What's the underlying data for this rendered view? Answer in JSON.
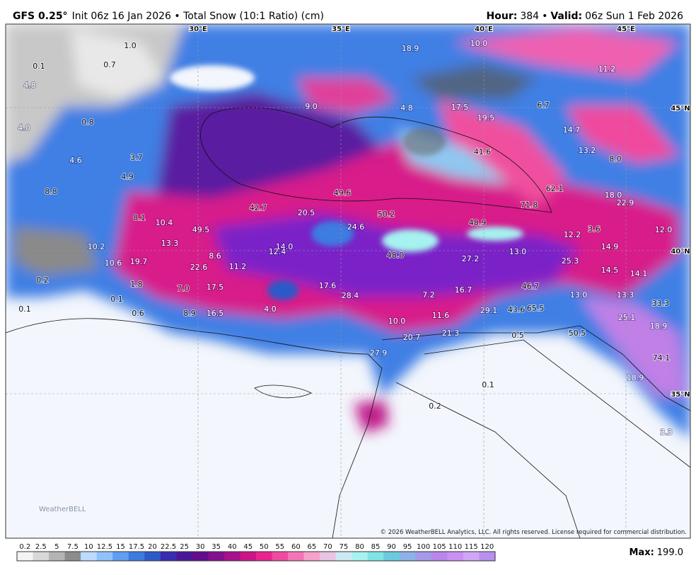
{
  "header": {
    "model": "GFS 0.25°",
    "description": "Init 06z 16 Jan 2026 • Total Snow (10:1 Ratio) (cm)",
    "hour_label": "Hour:",
    "hour": "384",
    "valid_label": "Valid:",
    "valid": "06z Sun 1 Feb 2026"
  },
  "grid_labels": [
    "30°E",
    "35°E",
    "40°E",
    "45°E",
    "45°N",
    "40°N",
    "35°N"
  ],
  "map_labels": [
    "18.9",
    "10.0",
    "1.0",
    "0.7",
    "0.1",
    "11.2",
    "4.8",
    "9.0",
    "4.8",
    "17.5",
    "19.5",
    "6.7",
    "0.8",
    "14.7",
    "4.0",
    "13.2",
    "8.0",
    "41.6",
    "3.7",
    "4.6",
    "4.9",
    "62.1",
    "49.6",
    "18.0",
    "22.9",
    "8.8",
    "42.7",
    "20.5",
    "50.2",
    "71.8",
    "8.1",
    "10.4",
    "49.5",
    "24.6",
    "48.9",
    "3.6",
    "12.0",
    "12.2",
    "13.3",
    "14.0",
    "10.2",
    "14.9",
    "8.6",
    "12.4",
    "48.0",
    "13.0",
    "27.2",
    "25.3",
    "10.6",
    "19.7",
    "22.6",
    "11.2",
    "14.5",
    "14.1",
    "0.2",
    "1.8",
    "17.6",
    "17.5",
    "7.0",
    "46.7",
    "16.7",
    "7.2",
    "13.0",
    "13.3",
    "28.4",
    "0.1",
    "33.3",
    "0.1",
    "0.6",
    "8.9",
    "16.5",
    "4.0",
    "29.1",
    "43.6",
    "65.5",
    "11.6",
    "25.1",
    "10.0",
    "18.9",
    "21.3",
    "20.7",
    "50.5",
    "0.5",
    "27.9",
    "74.1",
    "18.9",
    "0.1",
    "0.2",
    "3.3"
  ],
  "logo": "WeatherBELL",
  "copyright": "© 2026 WeatherBELL Analytics, LLC. All rights reserved. License required for commercial distribution.",
  "colorbar": {
    "labels": [
      "0.2",
      "2.5",
      "5",
      "7.5",
      "10",
      "12.5",
      "15",
      "17.5",
      "20",
      "22.5",
      "25",
      "30",
      "35",
      "40",
      "45",
      "50",
      "55",
      "60",
      "65",
      "70",
      "75",
      "80",
      "85",
      "90",
      "95",
      "100",
      "105",
      "110",
      "115",
      "120"
    ],
    "colors": [
      "#f4f4f4",
      "#d8d8d8",
      "#b4b4b4",
      "#8c8c8c",
      "#bcdcff",
      "#8ec2fb",
      "#5f9ef0",
      "#3c7ce0",
      "#2d5ac8",
      "#3a2cb0",
      "#4a1896",
      "#620c8e",
      "#82108e",
      "#a8108c",
      "#cc1488",
      "#e82490",
      "#f04aa2",
      "#f474b8",
      "#f6a0cc",
      "#e8c4e4",
      "#cce8f4",
      "#a6f2f0",
      "#7ee4e4",
      "#6ccade",
      "#8cb2e8",
      "#a49aea",
      "#b886ec",
      "#c890f2",
      "#d0a6f6",
      "#b890f0"
    ]
  },
  "max_label": "Max:",
  "max": "199.0"
}
